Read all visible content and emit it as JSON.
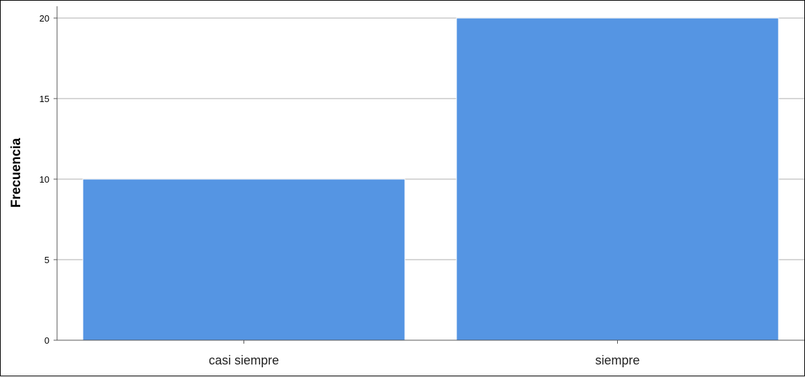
{
  "chart_data": {
    "type": "bar",
    "categories": [
      "casi siempre",
      "siempre"
    ],
    "values": [
      10,
      20
    ],
    "title": "",
    "xlabel": "",
    "ylabel": "Frecuencia",
    "ylim": [
      0,
      20
    ],
    "yticks": [
      "0",
      "5",
      "10",
      "15",
      "20"
    ],
    "grid": true,
    "legend": "none",
    "bar_color": "#5595e3",
    "bar_edge_color": "#ffffff",
    "grid_color": "#c8c8c8"
  }
}
